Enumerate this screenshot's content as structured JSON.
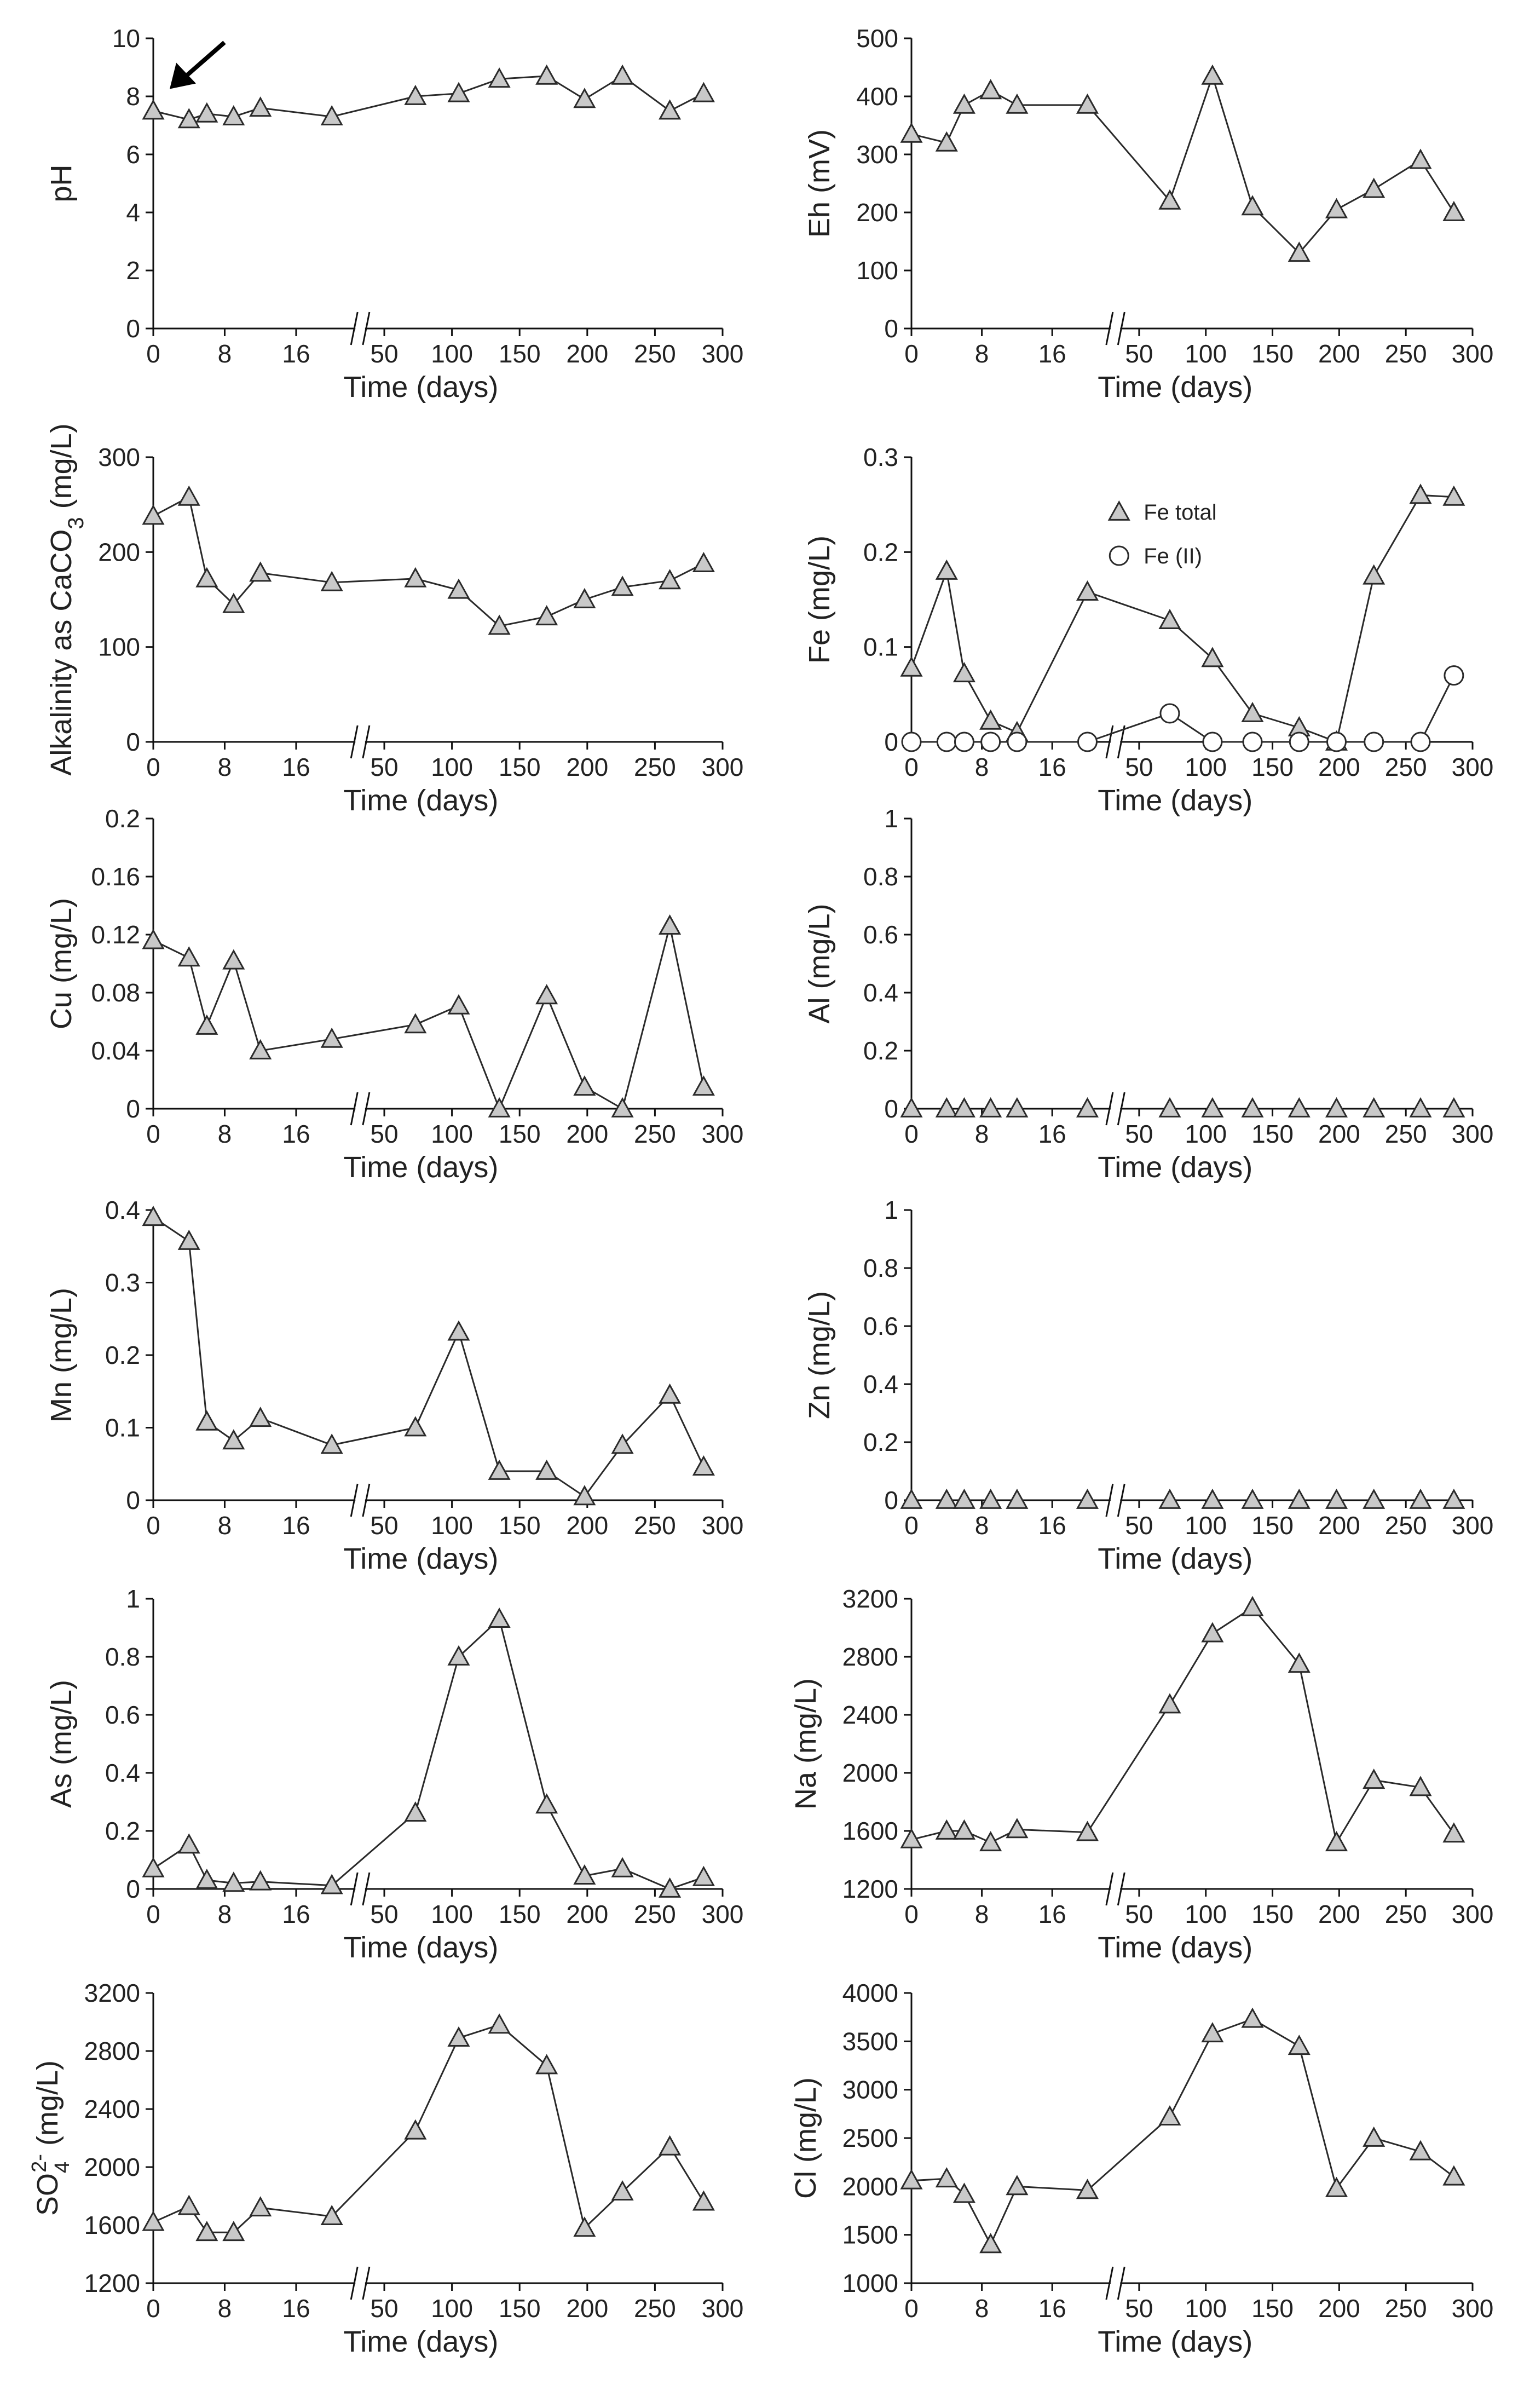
{
  "colors": {
    "line": "#2a2a2a",
    "axis": "#111111",
    "triangle_fill": "#c9c9c9",
    "circle_fill": "#ffffff",
    "background": "#ffffff"
  },
  "chart_data": [
    {
      "id": "ph",
      "type": "line",
      "ylabel": "pH",
      "xlabel": "Time (days)",
      "ylim": [
        0,
        10
      ],
      "yticks": [
        0,
        2,
        4,
        6,
        8,
        10
      ],
      "xticks": [
        "0",
        "8",
        "16",
        "50",
        "100",
        "150",
        "200",
        "250",
        "300"
      ],
      "x_break": true,
      "annotation": "arrow pointing to first data point",
      "x": [
        0,
        4,
        6,
        9,
        12,
        20,
        73,
        105,
        135,
        170,
        198,
        226,
        261,
        286
      ],
      "series": [
        {
          "marker": "triangle",
          "values": [
            7.5,
            7.2,
            7.4,
            7.3,
            7.6,
            7.3,
            8.0,
            8.1,
            8.6,
            8.7,
            7.9,
            8.7,
            7.5,
            8.1
          ]
        }
      ]
    },
    {
      "id": "eh",
      "type": "line",
      "ylabel": "Eh (mV)",
      "xlabel": "Time (days)",
      "ylim": [
        0,
        500
      ],
      "yticks": [
        0,
        100,
        200,
        300,
        400,
        500
      ],
      "xticks": [
        "0",
        "8",
        "16",
        "50",
        "100",
        "150",
        "200",
        "250",
        "300"
      ],
      "x_break": true,
      "x": [
        0,
        4,
        6,
        9,
        12,
        20,
        73,
        105,
        135,
        170,
        198,
        226,
        261,
        286
      ],
      "series": [
        {
          "marker": "triangle",
          "values": [
            335,
            320,
            385,
            410,
            385,
            385,
            220,
            435,
            210,
            130,
            205,
            240,
            290,
            200
          ]
        }
      ]
    },
    {
      "id": "alkalinity",
      "type": "line",
      "ylabel": "Alkalinity as CaCO3 (mg/L)",
      "xlabel": "Time (days)",
      "ylim": [
        0,
        300
      ],
      "yticks": [
        0,
        100,
        200,
        300
      ],
      "xticks": [
        "0",
        "8",
        "16",
        "50",
        "100",
        "150",
        "200",
        "250",
        "300"
      ],
      "x_break": true,
      "x": [
        0,
        4,
        6,
        9,
        12,
        20,
        73,
        105,
        135,
        170,
        198,
        226,
        261,
        286
      ],
      "series": [
        {
          "marker": "triangle",
          "values": [
            238,
            258,
            172,
            145,
            178,
            168,
            172,
            160,
            122,
            132,
            150,
            163,
            170,
            188
          ]
        }
      ]
    },
    {
      "id": "fe",
      "type": "line",
      "ylabel": "Fe (mg/L)",
      "xlabel": "Time (days)",
      "ylim": [
        0,
        0.3
      ],
      "yticks": [
        0,
        0.1,
        0.2,
        0.3
      ],
      "xticks": [
        "0",
        "8",
        "16",
        "50",
        "100",
        "150",
        "200",
        "250",
        "300"
      ],
      "x_break": true,
      "x": [
        0,
        4,
        6,
        9,
        12,
        20,
        73,
        105,
        135,
        170,
        198,
        226,
        261,
        286
      ],
      "legend_position": "top-center",
      "series": [
        {
          "name": "Fe total",
          "marker": "triangle",
          "values": [
            0.078,
            0.18,
            0.072,
            0.022,
            0.01,
            0.158,
            0.128,
            0.088,
            0.03,
            0.015,
            0.0,
            0.175,
            0.26,
            0.258
          ]
        },
        {
          "name": "Fe (II)",
          "marker": "circle",
          "values": [
            0,
            0,
            0,
            0,
            0,
            0,
            0.03,
            0,
            0,
            0,
            0,
            0,
            0,
            0.07
          ]
        }
      ]
    },
    {
      "id": "cu",
      "type": "line",
      "ylabel": "Cu (mg/L)",
      "xlabel": "Time (days)",
      "ylim": [
        0,
        0.2
      ],
      "yticks": [
        0,
        0.04,
        0.08,
        0.12,
        0.16,
        0.2
      ],
      "xticks": [
        "0",
        "8",
        "16",
        "50",
        "100",
        "150",
        "200",
        "250",
        "300"
      ],
      "x_break": true,
      "x": [
        0,
        4,
        6,
        9,
        12,
        20,
        73,
        105,
        135,
        170,
        198,
        226,
        261,
        286
      ],
      "series": [
        {
          "marker": "triangle",
          "values": [
            0.116,
            0.104,
            0.057,
            0.102,
            0.04,
            0.048,
            0.058,
            0.071,
            0.0,
            0.078,
            0.015,
            0.0,
            0.126,
            0.015
          ]
        }
      ]
    },
    {
      "id": "al",
      "type": "line",
      "ylabel": "Al (mg/L)",
      "xlabel": "Time (days)",
      "ylim": [
        0,
        1
      ],
      "yticks": [
        0,
        0.2,
        0.4,
        0.6,
        0.8,
        1
      ],
      "xticks": [
        "0",
        "8",
        "16",
        "50",
        "100",
        "150",
        "200",
        "250",
        "300"
      ],
      "x_break": true,
      "x": [
        0,
        4,
        6,
        9,
        12,
        20,
        73,
        105,
        135,
        170,
        198,
        226,
        261,
        286
      ],
      "series": [
        {
          "marker": "triangle",
          "connect": false,
          "values": [
            0,
            0,
            0,
            0,
            0,
            0,
            0,
            0,
            0,
            0,
            0,
            0,
            0,
            0
          ]
        }
      ]
    },
    {
      "id": "mn",
      "type": "line",
      "ylabel": "Mn (mg/L)",
      "xlabel": "Time (days)",
      "ylim": [
        0,
        0.4
      ],
      "yticks": [
        0,
        0.1,
        0.2,
        0.3,
        0.4
      ],
      "xticks": [
        "0",
        "8",
        "16",
        "50",
        "100",
        "150",
        "200",
        "250",
        "300"
      ],
      "x_break": true,
      "x": [
        0,
        4,
        6,
        9,
        12,
        20,
        73,
        105,
        135,
        170,
        198,
        226,
        261,
        286
      ],
      "series": [
        {
          "marker": "triangle",
          "values": [
            0.39,
            0.357,
            0.108,
            0.082,
            0.113,
            0.076,
            0.1,
            0.232,
            0.04,
            0.04,
            0.005,
            0.076,
            0.145,
            0.046
          ]
        }
      ]
    },
    {
      "id": "zn",
      "type": "line",
      "ylabel": "Zn (mg/L)",
      "xlabel": "Time (days)",
      "ylim": [
        0,
        1
      ],
      "yticks": [
        0,
        0.2,
        0.4,
        0.6,
        0.8,
        1
      ],
      "xticks": [
        "0",
        "8",
        "16",
        "50",
        "100",
        "150",
        "200",
        "250",
        "300"
      ],
      "x_break": true,
      "x": [
        0,
        4,
        6,
        9,
        12,
        20,
        73,
        105,
        135,
        170,
        198,
        226,
        261,
        286
      ],
      "series": [
        {
          "marker": "triangle",
          "connect": false,
          "values": [
            0,
            0,
            0,
            0,
            0,
            0,
            0,
            0,
            0,
            0,
            0,
            0,
            0,
            0
          ]
        }
      ]
    },
    {
      "id": "as",
      "type": "line",
      "ylabel": "As (mg/L)",
      "xlabel": "Time (days)",
      "ylim": [
        0,
        1
      ],
      "yticks": [
        0,
        0.2,
        0.4,
        0.6,
        0.8,
        1
      ],
      "xticks": [
        "0",
        "8",
        "16",
        "50",
        "100",
        "150",
        "200",
        "250",
        "300"
      ],
      "x_break": true,
      "x": [
        0,
        4,
        6,
        9,
        12,
        20,
        73,
        105,
        135,
        170,
        198,
        226,
        261,
        286
      ],
      "series": [
        {
          "marker": "triangle",
          "values": [
            0.07,
            0.152,
            0.03,
            0.02,
            0.025,
            0.012,
            0.262,
            0.8,
            0.93,
            0.29,
            0.045,
            0.07,
            0.0,
            0.04
          ]
        }
      ]
    },
    {
      "id": "na",
      "type": "line",
      "ylabel": "Na (mg/L)",
      "xlabel": "Time (days)",
      "ylim": [
        1200,
        3200
      ],
      "yticks": [
        1200,
        1600,
        2000,
        2400,
        2800,
        3200
      ],
      "xticks": [
        "0",
        "8",
        "16",
        "50",
        "100",
        "150",
        "200",
        "250",
        "300"
      ],
      "x_break": true,
      "x": [
        0,
        4,
        6,
        9,
        12,
        20,
        73,
        105,
        135,
        170,
        198,
        226,
        261,
        286
      ],
      "series": [
        {
          "marker": "triangle",
          "values": [
            1540,
            1600,
            1600,
            1520,
            1610,
            1590,
            2470,
            2960,
            3140,
            2750,
            1520,
            1950,
            1900,
            1580
          ]
        }
      ]
    },
    {
      "id": "so4",
      "type": "line",
      "ylabel": "SO42- (mg/L)",
      "xlabel": "Time (days)",
      "ylim": [
        1200,
        3200
      ],
      "yticks": [
        1200,
        1600,
        2000,
        2400,
        2800,
        3200
      ],
      "xticks": [
        "0",
        "8",
        "16",
        "50",
        "100",
        "150",
        "200",
        "250",
        "300"
      ],
      "x_break": true,
      "x": [
        0,
        4,
        6,
        9,
        12,
        20,
        73,
        105,
        135,
        170,
        198,
        226,
        261,
        286
      ],
      "series": [
        {
          "marker": "triangle",
          "values": [
            1620,
            1730,
            1550,
            1550,
            1720,
            1660,
            2250,
            2890,
            2980,
            2700,
            1580,
            1830,
            2140,
            1760
          ]
        }
      ]
    },
    {
      "id": "cl",
      "type": "line",
      "ylabel": "Cl (mg/L)",
      "xlabel": "Time (days)",
      "ylim": [
        1000,
        4000
      ],
      "yticks": [
        1000,
        1500,
        2000,
        2500,
        3000,
        3500,
        4000
      ],
      "xticks": [
        "0",
        "8",
        "16",
        "50",
        "100",
        "150",
        "200",
        "250",
        "300"
      ],
      "x_break": true,
      "x": [
        0,
        4,
        6,
        9,
        12,
        20,
        73,
        105,
        135,
        170,
        198,
        226,
        261,
        286
      ],
      "series": [
        {
          "marker": "triangle",
          "values": [
            2060,
            2080,
            1920,
            1400,
            2000,
            1960,
            2720,
            3580,
            3730,
            3450,
            1980,
            2500,
            2360,
            2100
          ]
        }
      ]
    }
  ]
}
